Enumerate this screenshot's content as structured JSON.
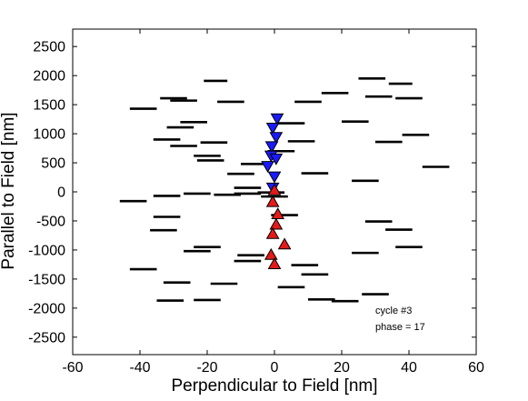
{
  "chart_data": {
    "type": "scatter",
    "title": "",
    "xlabel": "Perpendicular to Field [nm]",
    "ylabel": "Parallel to Field [nm]",
    "xlim": [
      -60,
      60
    ],
    "ylim": [
      -2800,
      2800
    ],
    "xticks": [
      -60,
      -40,
      -20,
      0,
      20,
      40,
      60
    ],
    "yticks": [
      -2500,
      -2000,
      -1500,
      -1000,
      -500,
      0,
      500,
      1000,
      1500,
      2000,
      2500
    ],
    "xtick_labels": [
      "-60",
      "-40",
      "-20",
      "0",
      "20",
      "40",
      "60"
    ],
    "ytick_labels": [
      "-2500",
      "-2000",
      "-1500",
      "-1000",
      "-500",
      "0",
      "500",
      "1000",
      "1500",
      "2000",
      "2500"
    ],
    "grid": false,
    "legend": null,
    "annotations": [
      "cycle #3",
      "phase = 17"
    ],
    "colors": {
      "segments": "#000000",
      "down_markers": "#1a1aff",
      "up_markers": "#e41a1a",
      "marker_edge": "#000000"
    },
    "segments": [
      {
        "x1": -21,
        "x2": -14,
        "y": 1910
      },
      {
        "x1": 25,
        "x2": 33,
        "y": 1950
      },
      {
        "x1": 34,
        "x2": 41,
        "y": 1860
      },
      {
        "x1": 14,
        "x2": 22,
        "y": 1700
      },
      {
        "x1": -34,
        "x2": -26,
        "y": 1610
      },
      {
        "x1": -31,
        "x2": -23,
        "y": 1570
      },
      {
        "x1": 27,
        "x2": 35,
        "y": 1640
      },
      {
        "x1": 36,
        "x2": 44,
        "y": 1610
      },
      {
        "x1": -17,
        "x2": -9,
        "y": 1550
      },
      {
        "x1": 6,
        "x2": 14,
        "y": 1550
      },
      {
        "x1": -43,
        "x2": -35,
        "y": 1430
      },
      {
        "x1": -28,
        "x2": -20,
        "y": 1200
      },
      {
        "x1": -32,
        "x2": -24,
        "y": 1110
      },
      {
        "x1": 1,
        "x2": 9,
        "y": 1180
      },
      {
        "x1": 20,
        "x2": 28,
        "y": 1210
      },
      {
        "x1": 38,
        "x2": 46,
        "y": 980
      },
      {
        "x1": -36,
        "x2": -28,
        "y": 900
      },
      {
        "x1": -22,
        "x2": -14,
        "y": 850
      },
      {
        "x1": -31,
        "x2": -23,
        "y": 790
      },
      {
        "x1": 4,
        "x2": 12,
        "y": 870
      },
      {
        "x1": 30,
        "x2": 38,
        "y": 860
      },
      {
        "x1": -2,
        "x2": 6,
        "y": 700
      },
      {
        "x1": -24,
        "x2": -16,
        "y": 620
      },
      {
        "x1": -23,
        "x2": -15,
        "y": 540
      },
      {
        "x1": -10,
        "x2": -2,
        "y": 480
      },
      {
        "x1": 44,
        "x2": 52,
        "y": 430
      },
      {
        "x1": -14,
        "x2": -6,
        "y": 310
      },
      {
        "x1": 8,
        "x2": 16,
        "y": 320
      },
      {
        "x1": 23,
        "x2": 31,
        "y": 190
      },
      {
        "x1": -12,
        "x2": -4,
        "y": 70
      },
      {
        "x1": -5,
        "x2": 3,
        "y": -10
      },
      {
        "x1": -18,
        "x2": -10,
        "y": -50
      },
      {
        "x1": -12,
        "x2": -4,
        "y": -30
      },
      {
        "x1": -27,
        "x2": -19,
        "y": -30
      },
      {
        "x1": -36,
        "x2": -28,
        "y": -70
      },
      {
        "x1": -46,
        "x2": -38,
        "y": -160
      },
      {
        "x1": -4,
        "x2": 4,
        "y": -80
      },
      {
        "x1": -1,
        "x2": 7,
        "y": -400
      },
      {
        "x1": -36,
        "x2": -28,
        "y": -430
      },
      {
        "x1": 27,
        "x2": 35,
        "y": -510
      },
      {
        "x1": 33,
        "x2": 41,
        "y": -650
      },
      {
        "x1": -37,
        "x2": -29,
        "y": -660
      },
      {
        "x1": 36,
        "x2": 44,
        "y": -950
      },
      {
        "x1": -24,
        "x2": -16,
        "y": -950
      },
      {
        "x1": -27,
        "x2": -19,
        "y": -1020
      },
      {
        "x1": 23,
        "x2": 31,
        "y": -1050
      },
      {
        "x1": -11,
        "x2": -3,
        "y": -1090
      },
      {
        "x1": -12,
        "x2": -4,
        "y": -1190
      },
      {
        "x1": 5,
        "x2": 13,
        "y": -1260
      },
      {
        "x1": -43,
        "x2": -35,
        "y": -1330
      },
      {
        "x1": 8,
        "x2": 16,
        "y": -1420
      },
      {
        "x1": -33,
        "x2": -25,
        "y": -1560
      },
      {
        "x1": -19,
        "x2": -11,
        "y": -1580
      },
      {
        "x1": 1,
        "x2": 9,
        "y": -1640
      },
      {
        "x1": -35,
        "x2": -27,
        "y": -1870
      },
      {
        "x1": -24,
        "x2": -16,
        "y": -1860
      },
      {
        "x1": 10,
        "x2": 18,
        "y": -1850
      },
      {
        "x1": 17,
        "x2": 25,
        "y": -1880
      },
      {
        "x1": 26,
        "x2": 34,
        "y": -1760
      }
    ],
    "series": [
      {
        "marker": "triangle-down",
        "color": "#1a1aff",
        "x": [
          0.8,
          -0.5,
          0.5,
          -0.8,
          -1.0,
          0.5,
          -2.0,
          0.0,
          -0.5
        ],
        "y": [
          1260,
          1100,
          940,
          780,
          620,
          570,
          440,
          260,
          70
        ]
      },
      {
        "marker": "triangle-up",
        "color": "#e41a1a",
        "x": [
          0.0,
          -0.5,
          1.0,
          0.5,
          -0.5,
          3.0,
          -1.0,
          0.0
        ],
        "y": [
          30,
          -170,
          -380,
          -560,
          -720,
          -900,
          -1080,
          -1240
        ]
      }
    ]
  }
}
